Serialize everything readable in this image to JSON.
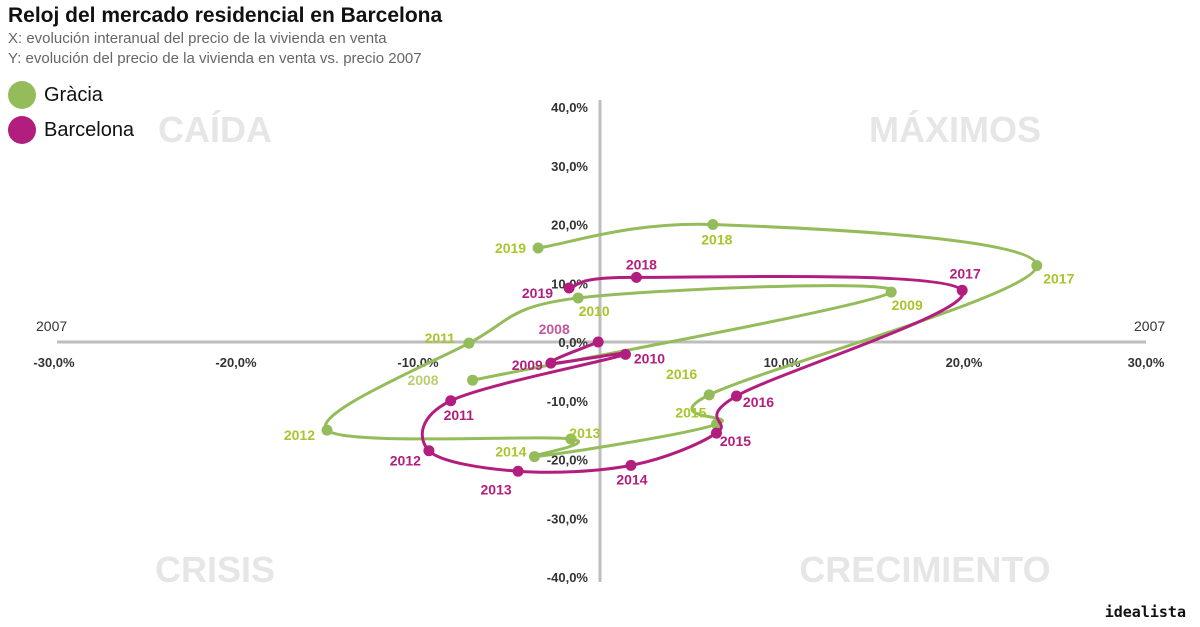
{
  "title": "Reloj del mercado residencial en Barcelona",
  "subtitle_x": "X: evolución interanual del precio de la vivienda en venta",
  "subtitle_y": "Y: evolución del precio de la vivienda en venta vs. precio 2007",
  "brand": "idealista",
  "colors": {
    "Gràcia": "#95bc5a",
    "Barcelona": "#b21e7e",
    "label_gracia": "#a6c62c",
    "quadrant": "#e6e6e6",
    "axis": "#bdbdbd"
  },
  "chart_data": {
    "type": "scatter",
    "connected": true,
    "xlim": [
      -30,
      30
    ],
    "ylim": [
      -40,
      40
    ],
    "x_ticks": [
      "-30,0%",
      "-20,0%",
      "-10,0%",
      "0,0%",
      "10,0%",
      "20,0%",
      "30,0%"
    ],
    "y_ticks": [
      "40,0%",
      "30,0%",
      "20,0%",
      "10,0%",
      "0,0%",
      "-10,0%",
      "-20,0%",
      "-30,0%",
      "-40,0%"
    ],
    "axis_end_labels": {
      "left": "2007",
      "right": "2007"
    },
    "quadrant_labels": {
      "top_left": "CAÍDA",
      "top_right": "MÁXIMOS",
      "bottom_left": "CRISIS",
      "bottom_right": "CRECIMIENTO"
    },
    "series": [
      {
        "name": "Gràcia",
        "points": [
          {
            "year": "2008",
            "x": -7.0,
            "y": -6.5
          },
          {
            "year": "2009",
            "x": 16.0,
            "y": 8.5
          },
          {
            "year": "2010",
            "x": -1.2,
            "y": 7.5
          },
          {
            "year": "2011",
            "x": -7.2,
            "y": -0.2
          },
          {
            "year": "2012",
            "x": -15.0,
            "y": -15.0
          },
          {
            "year": "2013",
            "x": -1.6,
            "y": -16.5
          },
          {
            "year": "2014",
            "x": -3.6,
            "y": -19.5
          },
          {
            "year": "2015",
            "x": 6.4,
            "y": -14.0
          },
          {
            "year": "2016",
            "x": 6.0,
            "y": -9.0
          },
          {
            "year": "2017",
            "x": 24.0,
            "y": 13.0
          },
          {
            "year": "2018",
            "x": 6.2,
            "y": 20.0
          },
          {
            "year": "2019",
            "x": -3.4,
            "y": 16.0
          }
        ]
      },
      {
        "name": "Barcelona",
        "points": [
          {
            "year": "2008",
            "x": -0.1,
            "y": 0.0
          },
          {
            "year": "2009",
            "x": -2.7,
            "y": -3.6
          },
          {
            "year": "2010",
            "x": 1.4,
            "y": -2.1
          },
          {
            "year": "2011",
            "x": -8.2,
            "y": -10.0
          },
          {
            "year": "2012",
            "x": -9.4,
            "y": -18.5
          },
          {
            "year": "2013",
            "x": -4.5,
            "y": -22.0
          },
          {
            "year": "2014",
            "x": 1.7,
            "y": -21.0
          },
          {
            "year": "2015",
            "x": 6.4,
            "y": -15.5
          },
          {
            "year": "2016",
            "x": 7.5,
            "y": -9.2
          },
          {
            "year": "2017",
            "x": 19.9,
            "y": 8.8
          },
          {
            "year": "2018",
            "x": 2.0,
            "y": 11.0
          },
          {
            "year": "2019",
            "x": -1.7,
            "y": 9.2
          }
        ]
      }
    ]
  }
}
